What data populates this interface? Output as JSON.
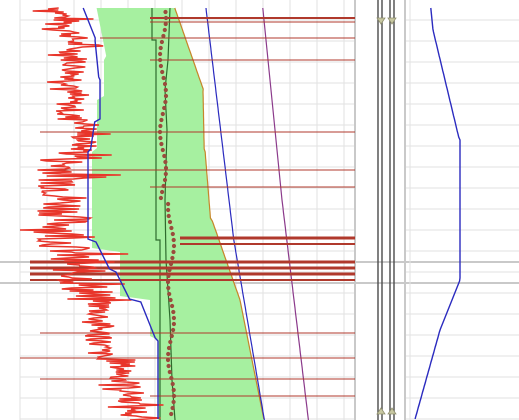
{
  "tracks": [
    {
      "id": "main-log-track",
      "curves": [
        {
          "id": "noisy-curve",
          "color": "#e8352a"
        },
        {
          "id": "baseline-curve",
          "color": "#2b2bbf"
        },
        {
          "id": "fill-boundary-curve",
          "color": "#c6862a"
        },
        {
          "id": "dotted-samples",
          "color": "#9a4b3c"
        },
        {
          "id": "step-curve",
          "color": "#2d6b2d"
        },
        {
          "id": "right-blue-curve",
          "color": "#2b2bbf"
        },
        {
          "id": "right-purple-curve",
          "color": "#8b3a8b"
        }
      ],
      "fill_color": "#a6f0a0",
      "marker_lines_color": "#b0392c"
    },
    {
      "id": "middle-track",
      "line_color": "#4b4b4b",
      "handle_color": "#c7c7a1"
    },
    {
      "id": "right-track",
      "curves": [
        {
          "id": "right-track-blue-curve",
          "color": "#2b2bbf"
        }
      ]
    }
  ],
  "grid": {
    "major_color": "#c9c9c9",
    "minor_color": "#e2e2e2"
  }
}
